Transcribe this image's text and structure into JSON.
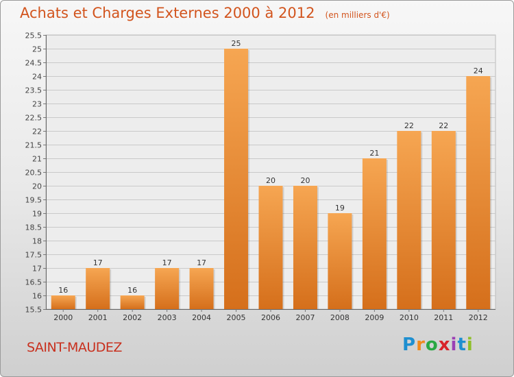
{
  "header": {
    "title": "Achats et Charges Externes 2000 à 2012",
    "unit": "(en milliers d'€)"
  },
  "footer": {
    "commune": "SAINT-MAUDEZ",
    "logo": {
      "letters": [
        "P",
        "r",
        "o",
        "x",
        "i",
        "t",
        "i"
      ],
      "colors": [
        "#1e8fd0",
        "#f08a1c",
        "#2aa843",
        "#d8232a",
        "#9b3fb5",
        "#1e8fd0",
        "#8fbf2a"
      ]
    }
  },
  "colors": {
    "bar_light": "#f6a652",
    "bar_dark": "#d56f1b",
    "title": "#d2541d",
    "commune": "#c8301e"
  },
  "chart_data": {
    "type": "bar",
    "categories": [
      "2000",
      "2001",
      "2002",
      "2003",
      "2004",
      "2005",
      "2006",
      "2007",
      "2008",
      "2009",
      "2010",
      "2011",
      "2012"
    ],
    "values": [
      16,
      17,
      16,
      17,
      17,
      25,
      20,
      20,
      19,
      21,
      22,
      22,
      24
    ],
    "data_labels": [
      "16",
      "17",
      "16",
      "17",
      "17",
      "25",
      "20",
      "20",
      "19",
      "21",
      "22",
      "22",
      "24"
    ],
    "ylim": [
      15.5,
      25.5
    ],
    "yticks": [
      "15.5",
      "16",
      "16.5",
      "17",
      "17.5",
      "18",
      "18.5",
      "19",
      "19.5",
      "20",
      "20.5",
      "21",
      "21.5",
      "22",
      "22.5",
      "23",
      "23.5",
      "24",
      "24.5",
      "25",
      "25.5"
    ],
    "grid": true
  }
}
